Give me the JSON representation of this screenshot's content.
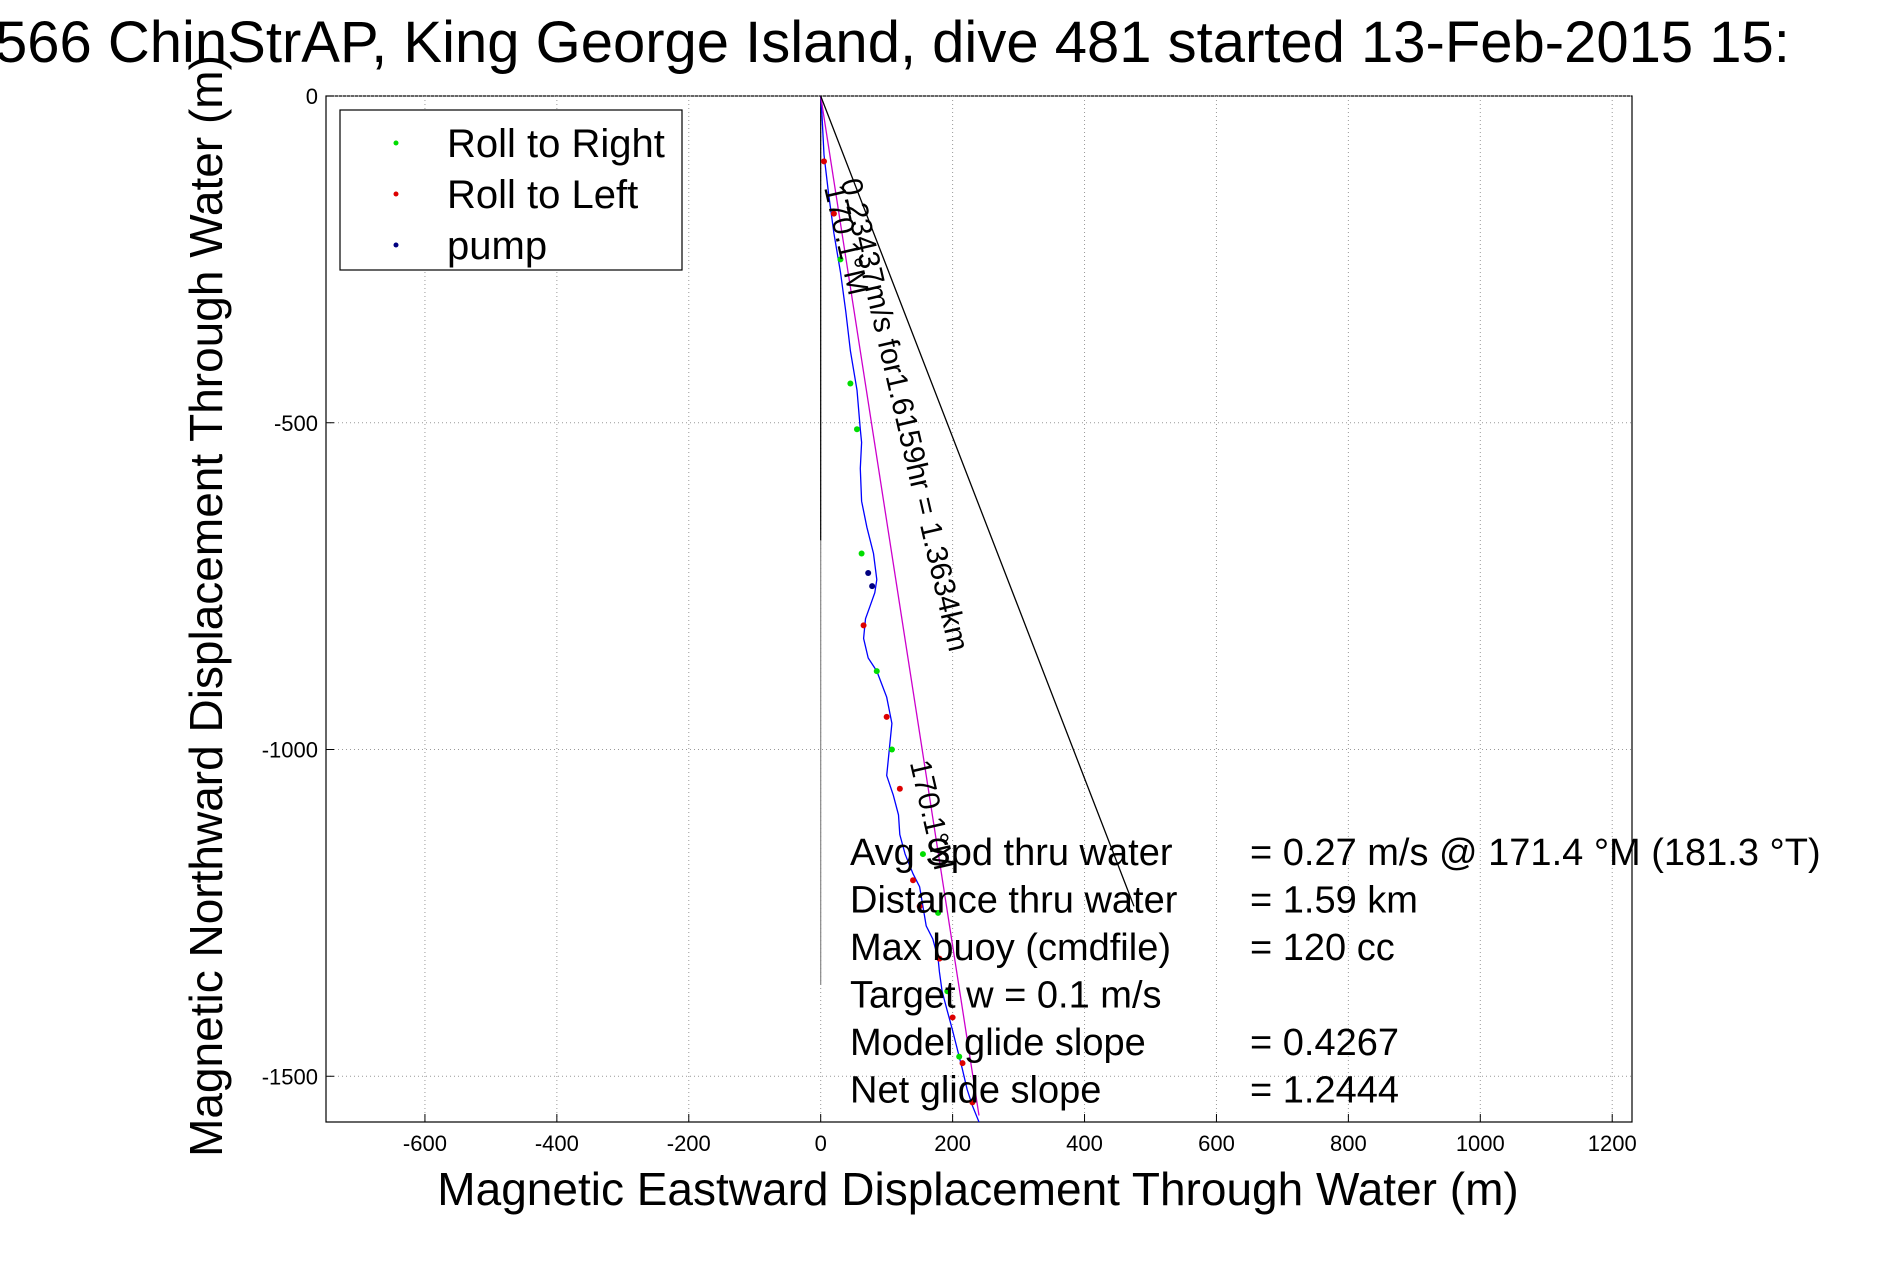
{
  "chart_data": {
    "type": "line",
    "title": "566 ChinStrAP, King George Island, dive 481 started 13-Feb-2015 15:",
    "xlabel": "Magnetic Eastward Displacement Through Water (m)",
    "ylabel": "Magnetic Northward Displacement Through Water (m)",
    "xlim": [
      -750,
      1230
    ],
    "ylim": [
      -1570,
      0
    ],
    "xticks": [
      -600,
      -400,
      -200,
      0,
      200,
      400,
      600,
      800,
      1000,
      1200
    ],
    "yticks": [
      0,
      -500,
      -1000,
      -1500
    ],
    "xtick_labels": [
      "-600",
      "-400",
      "-200",
      "0",
      "200",
      "400",
      "600",
      "800",
      "1000",
      "1200"
    ],
    "ytick_labels": [
      "0",
      "-500",
      "-1000",
      "-1500"
    ],
    "grid": true,
    "legend_position": "top-left",
    "legend": [
      {
        "label": "Roll to Right",
        "color": "#00dd00"
      },
      {
        "label": "Roll to Left",
        "color": "#dd0000"
      },
      {
        "label": "pump",
        "color": "#000080"
      }
    ],
    "series": [
      {
        "name": "track",
        "color": "#0000ff",
        "x": [
          0,
          2,
          5,
          12,
          20,
          30,
          38,
          45,
          55,
          60,
          62,
          60,
          62,
          70,
          80,
          85,
          82,
          75,
          68,
          65,
          72,
          85,
          100,
          108,
          104,
          100,
          110,
          118,
          120,
          128,
          140,
          150,
          155,
          160,
          170,
          178,
          180,
          184,
          192,
          200,
          205,
          210,
          215,
          222,
          230,
          240
        ],
        "y": [
          0,
          -30,
          -90,
          -150,
          -210,
          -270,
          -330,
          -390,
          -450,
          -510,
          -530,
          -570,
          -620,
          -660,
          -700,
          -740,
          -760,
          -780,
          -800,
          -830,
          -860,
          -880,
          -920,
          -960,
          -1000,
          -1040,
          -1070,
          -1100,
          -1130,
          -1160,
          -1190,
          -1210,
          -1240,
          -1270,
          -1290,
          -1320,
          -1340,
          -1370,
          -1400,
          -1430,
          -1450,
          -1470,
          -1490,
          -1520,
          -1545,
          -1570
        ]
      },
      {
        "name": "model",
        "color": "#cc00cc",
        "x": [
          0,
          240
        ],
        "y": [
          0,
          -1560
        ]
      },
      {
        "name": "net",
        "color": "#000000",
        "x": [
          0,
          475
        ],
        "y": [
          0,
          -1240
        ]
      }
    ],
    "markers": {
      "Roll to Right": {
        "x": [
          30,
          45,
          55,
          62,
          85,
          108,
          155,
          178,
          192,
          210
        ],
        "y": [
          -250,
          -440,
          -510,
          -700,
          -880,
          -1000,
          -1160,
          -1250,
          -1370,
          -1470
        ]
      },
      "Roll to Left": {
        "x": [
          5,
          20,
          65,
          100,
          120,
          140,
          150,
          180,
          200,
          215,
          230
        ],
        "y": [
          -100,
          -180,
          -810,
          -950,
          -1060,
          -1200,
          -1240,
          -1320,
          -1410,
          -1480,
          -1540
        ]
      },
      "pump": {
        "x": [
          72,
          78
        ],
        "y": [
          -730,
          -750
        ]
      }
    },
    "vertical_segments": [
      {
        "x": 0,
        "y": [
          0,
          -680
        ],
        "color": "#000000"
      },
      {
        "x": 0,
        "y": [
          -680,
          -1360
        ],
        "color": "#888888"
      }
    ],
    "annotations": [
      {
        "text": "0.23437m/s for1.6159hr = 1.3634km",
        "x": 30,
        "y": -130,
        "rotate": 77
      },
      {
        "text": "170.1°M",
        "x": 5,
        "y": -140,
        "rotate": 77
      },
      {
        "text": "170.1°M",
        "x": 135,
        "y": -1020,
        "rotate": 77
      }
    ],
    "stats": [
      {
        "label": "Avg Spd thru water",
        "value": "=  0.27 m/s @ 171.4 °M (181.3 °T)"
      },
      {
        "label": "Distance thru water",
        "value": "=  1.59 km"
      },
      {
        "label": "Max buoy (cmdfile)",
        "value": "= 120 cc"
      },
      {
        "label": "Target w    = 0.1 m/s",
        "value": ""
      },
      {
        "label": "Model glide slope",
        "value": "= 0.4267"
      },
      {
        "label": "Net glide slope",
        "value": "= 1.2444"
      }
    ]
  }
}
